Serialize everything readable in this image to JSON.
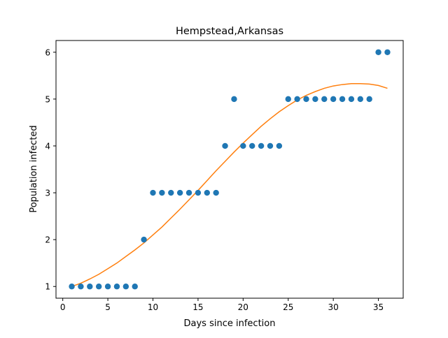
{
  "chart_data": {
    "type": "scatter",
    "title": "Hempstead,Arkansas",
    "xlabel": "Days since infection",
    "ylabel": "Population infected",
    "xlim": [
      -0.75,
      37.75
    ],
    "ylim": [
      0.75,
      6.25
    ],
    "xticks": [
      0,
      5,
      10,
      15,
      20,
      25,
      30,
      35
    ],
    "yticks": [
      1,
      2,
      3,
      4,
      5,
      6
    ],
    "grid": false,
    "series": [
      {
        "kind": "scatter",
        "color": "#1f77b4",
        "x": [
          1,
          2,
          3,
          4,
          5,
          6,
          7,
          8,
          9,
          10,
          11,
          12,
          13,
          14,
          15,
          16,
          17,
          18,
          19,
          20,
          21,
          22,
          23,
          24,
          25,
          26,
          27,
          28,
          29,
          30,
          31,
          32,
          33,
          34,
          35,
          36
        ],
        "y": [
          1,
          1,
          1,
          1,
          1,
          1,
          1,
          1,
          2,
          3,
          3,
          3,
          3,
          3,
          3,
          3,
          3,
          4,
          5,
          4,
          4,
          4,
          4,
          4,
          5,
          5,
          5,
          5,
          5,
          5,
          5,
          5,
          5,
          5,
          6,
          6
        ]
      },
      {
        "kind": "line",
        "color": "#ff7f0e",
        "x": [
          1,
          2,
          3,
          4,
          5,
          6,
          7,
          8,
          9,
          10,
          11,
          12,
          13,
          14,
          15,
          16,
          17,
          18,
          19,
          20,
          21,
          22,
          23,
          24,
          25,
          26,
          27,
          28,
          29,
          30,
          31,
          32,
          33,
          34,
          35,
          36
        ],
        "y": [
          1.0,
          1.07,
          1.16,
          1.26,
          1.38,
          1.5,
          1.64,
          1.78,
          1.93,
          2.1,
          2.27,
          2.46,
          2.65,
          2.85,
          3.05,
          3.26,
          3.47,
          3.67,
          3.87,
          4.06,
          4.24,
          4.42,
          4.58,
          4.73,
          4.86,
          4.98,
          5.08,
          5.16,
          5.23,
          5.28,
          5.31,
          5.33,
          5.33,
          5.32,
          5.29,
          5.23
        ]
      }
    ]
  }
}
